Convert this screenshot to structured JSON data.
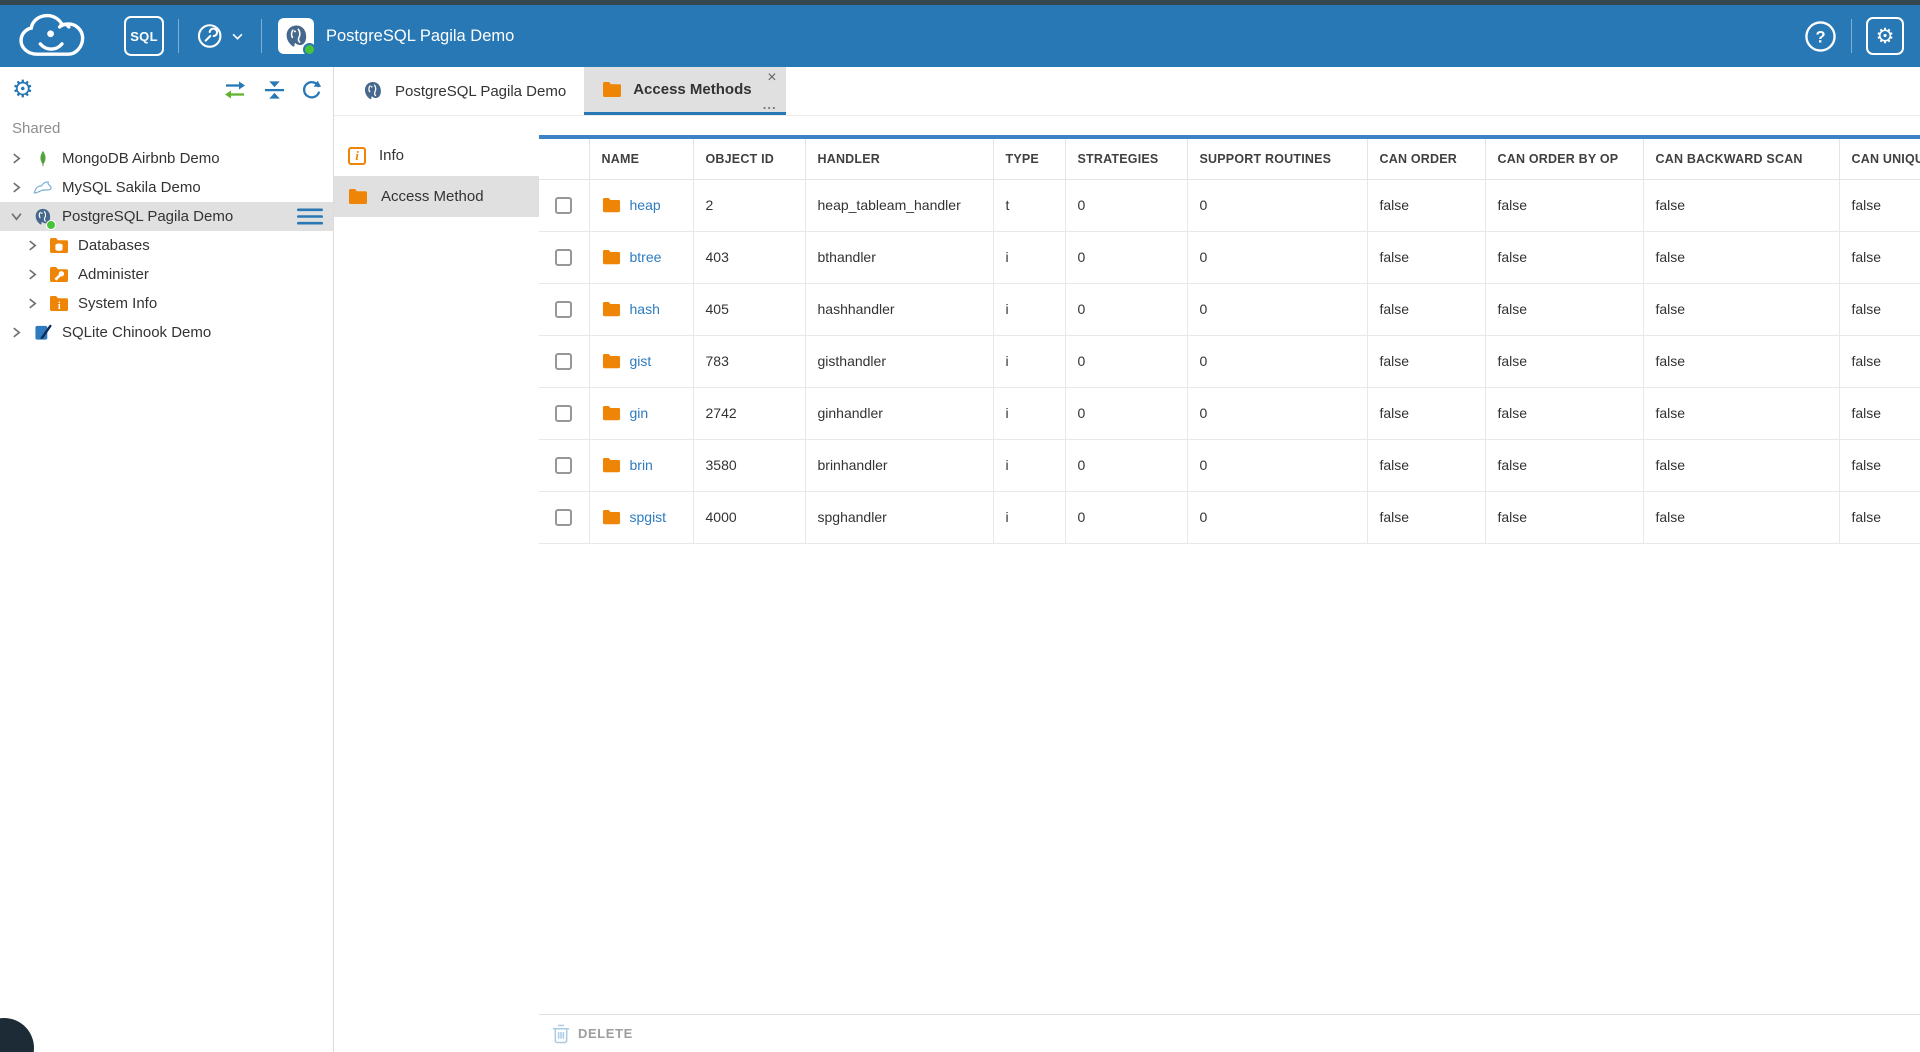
{
  "colors": {
    "top_strip": "#37474f",
    "header_bg": "#2878b5",
    "accent_blue": "#2878b5",
    "grid_top_line": "#3b82c6",
    "folder_orange": "#ef8506",
    "link_blue": "#2d7bc0",
    "selection_gray": "#e0e0e0",
    "status_green": "#47c33a",
    "mongodb_green": "#59a843",
    "delete_gray": "#9e9e9e"
  },
  "header": {
    "logo_icon": "cloudbeaver-logo",
    "sql_button_label": "SQL",
    "tools_icon": "tools-wrench-icon",
    "connection_icon": "postgresql-icon",
    "connection_name": "PostgreSQL Pagila Demo",
    "help_icon": "help-icon",
    "help_glyph": "?",
    "settings_icon": "gear-icon"
  },
  "sidebar": {
    "toolbar_icons": [
      "settings-gear-icon",
      "sync-icon",
      "collapse-all-icon",
      "refresh-icon"
    ],
    "section_label": "Shared",
    "tree": [
      {
        "label": "MongoDB Airbnb Demo",
        "icon": "mongodb-icon",
        "state": "collapsed",
        "selected": false
      },
      {
        "label": "MySQL Sakila Demo",
        "icon": "mysql-icon",
        "state": "collapsed",
        "selected": false
      },
      {
        "label": "PostgreSQL Pagila Demo",
        "icon": "postgresql-icon",
        "state": "expanded",
        "selected": true,
        "status": "connected",
        "menu_button": true,
        "children": [
          {
            "label": "Databases",
            "icon": "folder-databases-icon",
            "state": "collapsed",
            "selected": false
          },
          {
            "label": "Administer",
            "icon": "folder-administer-icon",
            "state": "collapsed",
            "selected": false
          },
          {
            "label": "System Info",
            "icon": "folder-systeminfo-icon",
            "state": "collapsed",
            "selected": false
          }
        ]
      },
      {
        "label": "SQLite Chinook Demo",
        "icon": "sqlite-icon",
        "state": "collapsed",
        "selected": false
      }
    ]
  },
  "tabs": [
    {
      "label": "PostgreSQL Pagila Demo",
      "icon": "postgresql-icon",
      "active": false
    },
    {
      "label": "Access Methods",
      "icon": "folder-icon",
      "active": true,
      "close_glyph": "×",
      "more_glyph": "..."
    }
  ],
  "object_panel": {
    "items": [
      {
        "label": "Info",
        "icon": "info-icon",
        "selected": false
      },
      {
        "label": "Access Method",
        "icon": "folder-icon",
        "selected": true
      }
    ],
    "info_glyph": "i"
  },
  "grid": {
    "columns": [
      {
        "label": "",
        "key": "checkbox"
      },
      {
        "label": "NAME",
        "key": "name"
      },
      {
        "label": "OBJECT ID",
        "key": "object_id"
      },
      {
        "label": "HANDLER",
        "key": "handler"
      },
      {
        "label": "TYPE",
        "key": "type"
      },
      {
        "label": "STRATEGIES",
        "key": "strategies"
      },
      {
        "label": "SUPPORT ROUTINES",
        "key": "support_routines"
      },
      {
        "label": "CAN ORDER",
        "key": "can_order"
      },
      {
        "label": "CAN ORDER BY OP",
        "key": "can_order_by_op"
      },
      {
        "label": "CAN BACKWARD SCAN",
        "key": "can_backward_scan"
      },
      {
        "label": "CAN UNIQUE",
        "key": "can_unique"
      }
    ],
    "rows": [
      {
        "name": "heap",
        "object_id": "2",
        "handler": "heap_tableam_handler",
        "type": "t",
        "strategies": "0",
        "support_routines": "0",
        "can_order": "false",
        "can_order_by_op": "false",
        "can_backward_scan": "false",
        "can_unique": "false"
      },
      {
        "name": "btree",
        "object_id": "403",
        "handler": "bthandler",
        "type": "i",
        "strategies": "0",
        "support_routines": "0",
        "can_order": "false",
        "can_order_by_op": "false",
        "can_backward_scan": "false",
        "can_unique": "false"
      },
      {
        "name": "hash",
        "object_id": "405",
        "handler": "hashhandler",
        "type": "i",
        "strategies": "0",
        "support_routines": "0",
        "can_order": "false",
        "can_order_by_op": "false",
        "can_backward_scan": "false",
        "can_unique": "false"
      },
      {
        "name": "gist",
        "object_id": "783",
        "handler": "gisthandler",
        "type": "i",
        "strategies": "0",
        "support_routines": "0",
        "can_order": "false",
        "can_order_by_op": "false",
        "can_backward_scan": "false",
        "can_unique": "false"
      },
      {
        "name": "gin",
        "object_id": "2742",
        "handler": "ginhandler",
        "type": "i",
        "strategies": "0",
        "support_routines": "0",
        "can_order": "false",
        "can_order_by_op": "false",
        "can_backward_scan": "false",
        "can_unique": "false"
      },
      {
        "name": "brin",
        "object_id": "3580",
        "handler": "brinhandler",
        "type": "i",
        "strategies": "0",
        "support_routines": "0",
        "can_order": "false",
        "can_order_by_op": "false",
        "can_backward_scan": "false",
        "can_unique": "false"
      },
      {
        "name": "spgist",
        "object_id": "4000",
        "handler": "spghandler",
        "type": "i",
        "strategies": "0",
        "support_routines": "0",
        "can_order": "false",
        "can_order_by_op": "false",
        "can_backward_scan": "false",
        "can_unique": "false"
      }
    ]
  },
  "footer": {
    "delete_icon": "trash-icon",
    "delete_label": "DELETE"
  }
}
